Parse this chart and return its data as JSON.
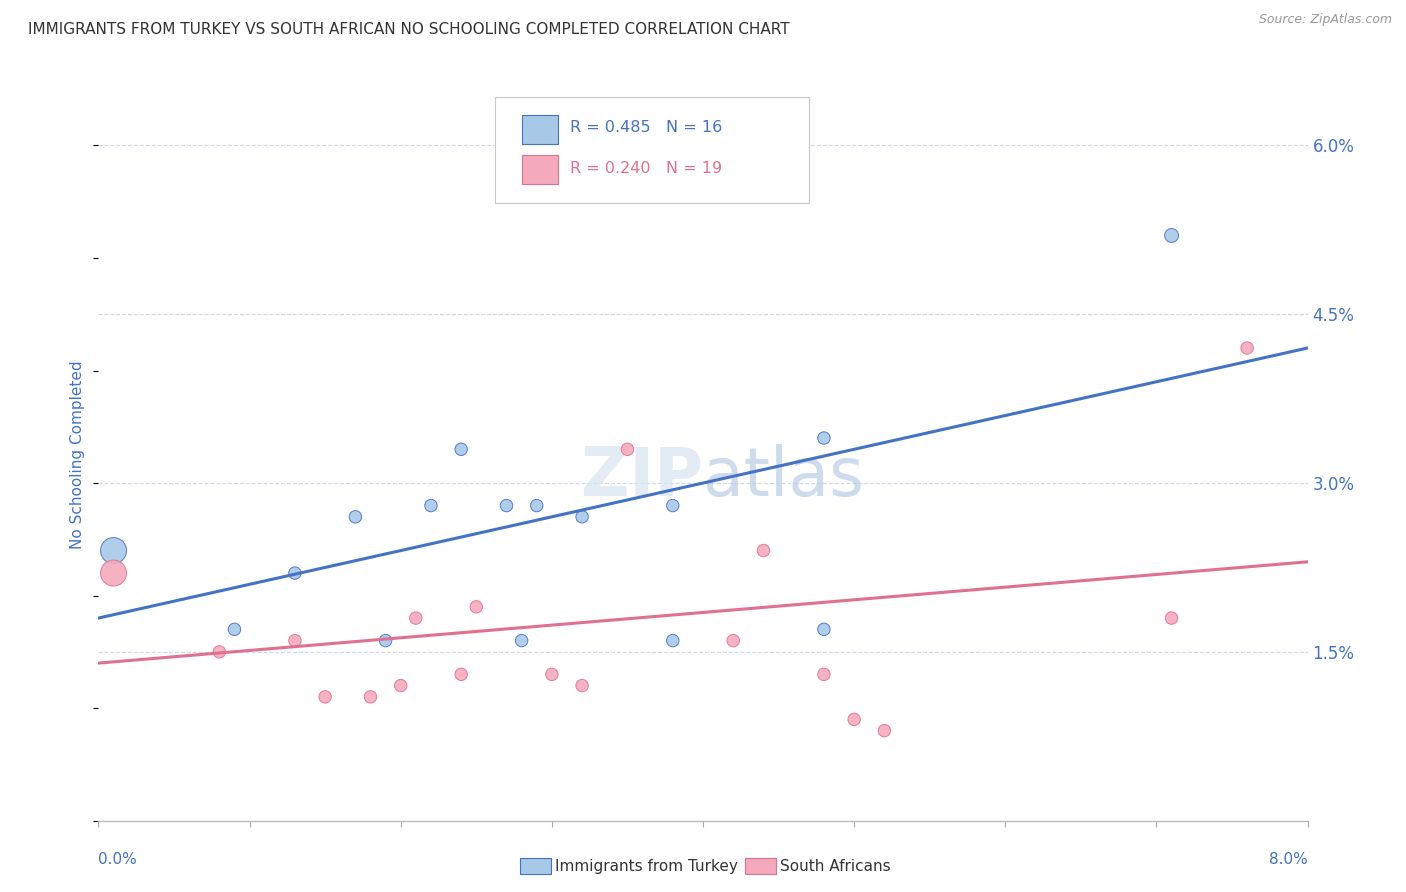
{
  "title": "IMMIGRANTS FROM TURKEY VS SOUTH AFRICAN NO SCHOOLING COMPLETED CORRELATION CHART",
  "source": "Source: ZipAtlas.com",
  "ylabel": "No Schooling Completed",
  "yticks": [
    "1.5%",
    "3.0%",
    "4.5%",
    "6.0%"
  ],
  "ytick_vals": [
    0.015,
    0.03,
    0.045,
    0.06
  ],
  "xmin": 0.0,
  "xmax": 0.08,
  "ymin": 0.0,
  "ymax": 0.065,
  "legend_r1": "R = 0.485",
  "legend_n1": "N = 16",
  "legend_r2": "R = 0.240",
  "legend_n2": "N = 19",
  "color_blue": "#a8c8e8",
  "color_pink": "#f4aabc",
  "line_blue": "#4472c4",
  "line_pink": "#e07090",
  "title_color": "#333333",
  "axis_label_color": "#4472c4",
  "watermark_color": "#d0ddf0",
  "blue_line_start_y": 0.018,
  "blue_line_end_y": 0.042,
  "pink_line_start_y": 0.014,
  "pink_line_end_y": 0.023,
  "blue_points_x": [
    0.001,
    0.009,
    0.013,
    0.017,
    0.019,
    0.022,
    0.024,
    0.027,
    0.028,
    0.029,
    0.032,
    0.038,
    0.038,
    0.048,
    0.048,
    0.071
  ],
  "blue_points_y": [
    0.024,
    0.017,
    0.022,
    0.027,
    0.016,
    0.028,
    0.033,
    0.028,
    0.016,
    0.028,
    0.027,
    0.028,
    0.016,
    0.017,
    0.034,
    0.052
  ],
  "blue_sizes": [
    350,
    80,
    80,
    80,
    80,
    80,
    80,
    80,
    80,
    80,
    80,
    80,
    80,
    80,
    80,
    100
  ],
  "pink_points_x": [
    0.001,
    0.008,
    0.013,
    0.015,
    0.018,
    0.02,
    0.021,
    0.024,
    0.025,
    0.03,
    0.032,
    0.035,
    0.042,
    0.044,
    0.048,
    0.05,
    0.052,
    0.071,
    0.076
  ],
  "pink_points_y": [
    0.022,
    0.015,
    0.016,
    0.011,
    0.011,
    0.012,
    0.018,
    0.013,
    0.019,
    0.013,
    0.012,
    0.033,
    0.016,
    0.024,
    0.013,
    0.009,
    0.008,
    0.018,
    0.042
  ],
  "pink_sizes": [
    350,
    80,
    80,
    80,
    80,
    80,
    80,
    80,
    80,
    80,
    80,
    80,
    80,
    80,
    80,
    80,
    80,
    80,
    80
  ]
}
